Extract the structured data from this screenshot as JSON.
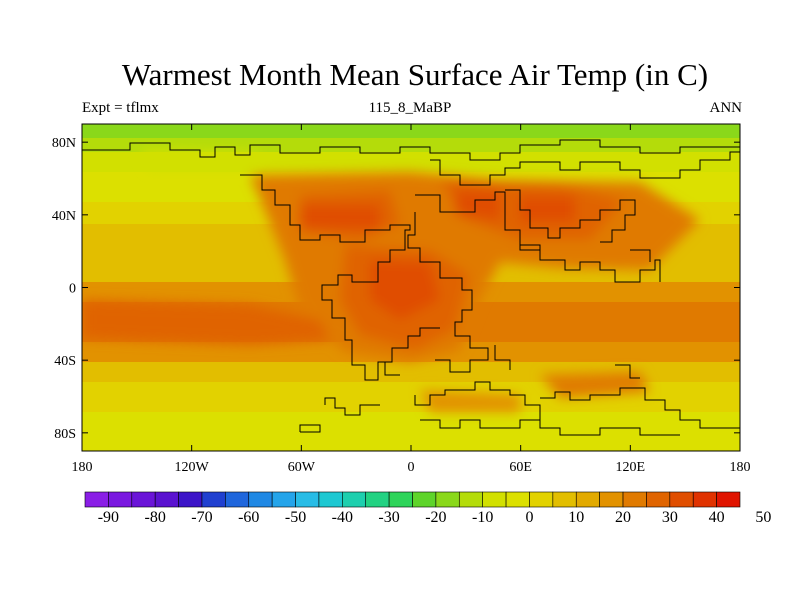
{
  "title": "Warmest Month Mean Surface Air Temp (in C)",
  "subtitle_left": "Expt = tflmx",
  "subtitle_center": "115_8_MaBP",
  "subtitle_right": "ANN",
  "map": {
    "lon_ticks": [
      "180",
      "120W",
      "60W",
      "0",
      "60E",
      "120E",
      "180"
    ],
    "lat_ticks": [
      "80N",
      "40N",
      "0",
      "40S",
      "80S"
    ]
  },
  "colorbar": {
    "labels": [
      "-90",
      "-80",
      "-70",
      "-60",
      "-50",
      "-40",
      "-30",
      "-20",
      "-10",
      "0",
      "10",
      "20",
      "30",
      "40",
      "50"
    ],
    "colors": [
      "#8a1ee6",
      "#7a18e0",
      "#6a14d8",
      "#5a12d0",
      "#3c14c8",
      "#2040d0",
      "#1f66dc",
      "#1f88e4",
      "#24a4ea",
      "#28bce6",
      "#1ec8d2",
      "#1ecfae",
      "#22d282",
      "#2ed45a",
      "#5ed42a",
      "#8ad81a",
      "#b4dc0a",
      "#d2e000",
      "#dce000",
      "#e2d200",
      "#e2be00",
      "#e2aa00",
      "#e29200",
      "#e07a00",
      "#e06400",
      "#e04e00",
      "#e03200",
      "#e01400"
    ]
  }
}
